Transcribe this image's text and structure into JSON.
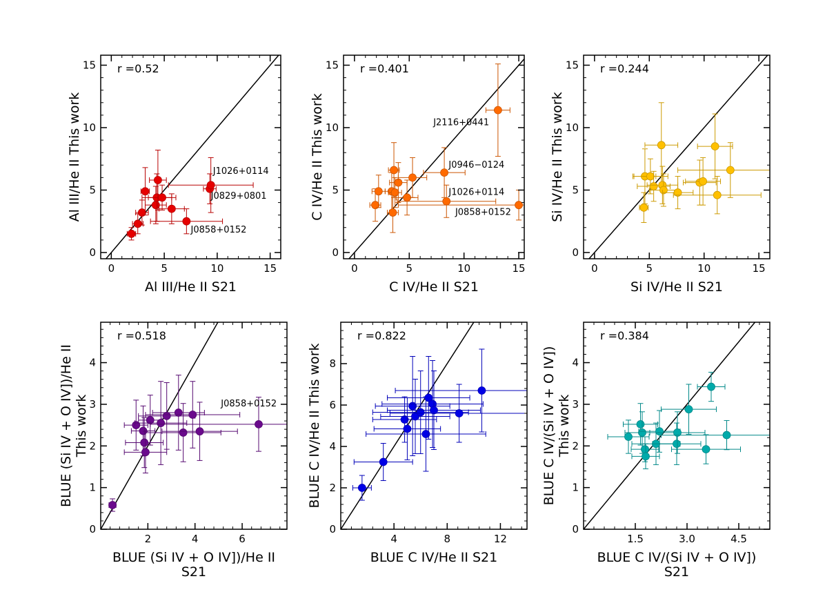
{
  "chart_data": [
    {
      "type": "scatter",
      "color": "#e60000",
      "xlabel": "Al III/He II S21",
      "ylabel": "Al III/He II This work",
      "xlim": [
        -1,
        16
      ],
      "ylim": [
        -0.5,
        15.8
      ],
      "xticks": [
        0,
        5,
        10,
        15
      ],
      "yticks": [
        0,
        5,
        10,
        15
      ],
      "r_label": "r =0.52",
      "points": [
        {
          "x": 1.9,
          "y": 1.5,
          "xerr": 0.4,
          "yerr": 0.5
        },
        {
          "x": 2.5,
          "y": 2.3,
          "xerr": 0.5,
          "yerr": 0.8
        },
        {
          "x": 2.9,
          "y": 3.2,
          "xerr": 0.6,
          "yerr": 1.0
        },
        {
          "x": 3.2,
          "y": 4.9,
          "xerr": 0.4,
          "yerr": 1.9
        },
        {
          "x": 4.2,
          "y": 3.8,
          "xerr": 1.0,
          "yerr": 1.5
        },
        {
          "x": 4.3,
          "y": 4.4,
          "xerr": 1.4,
          "yerr": 1.9
        },
        {
          "x": 4.4,
          "y": 5.8,
          "xerr": 0.8,
          "yerr": 2.4
        },
        {
          "x": 4.8,
          "y": 4.4,
          "xerr": 1.3,
          "yerr": 1.0
        },
        {
          "x": 5.7,
          "y": 3.5,
          "xerr": 1.2,
          "yerr": 1.2
        },
        {
          "x": 7.1,
          "y": 2.5,
          "xerr": 3.4,
          "yerr": 1.0
        },
        {
          "x": 9.3,
          "y": 5.1,
          "xerr": 0.6,
          "yerr": 1.2
        },
        {
          "x": 9.4,
          "y": 5.4,
          "xerr": 4.0,
          "yerr": 2.2
        }
      ],
      "annotations": [
        {
          "text": "J1026+0114",
          "x": 9.6,
          "y": 6.3
        },
        {
          "text": "J0829+0801",
          "x": 9.4,
          "y": 4.3
        },
        {
          "text": "J0858+0152",
          "x": 7.5,
          "y": 1.6
        }
      ]
    },
    {
      "type": "scatter",
      "color": "#ff6a00",
      "xlabel": "C IV/He II S21",
      "ylabel": "C IV/He II This work",
      "xlim": [
        -1,
        15.5
      ],
      "ylim": [
        -0.5,
        15.8
      ],
      "xticks": [
        0,
        5,
        10,
        15
      ],
      "yticks": [
        0,
        5,
        10,
        15
      ],
      "r_label": "r =0.401",
      "points": [
        {
          "x": 1.9,
          "y": 3.8,
          "xerr": 0.5,
          "yerr": 1.3
        },
        {
          "x": 2.2,
          "y": 4.9,
          "xerr": 0.6,
          "yerr": 1.3
        },
        {
          "x": 3.4,
          "y": 4.9,
          "xerr": 0.6,
          "yerr": 1.5
        },
        {
          "x": 3.5,
          "y": 3.2,
          "xerr": 0.5,
          "yerr": 1.6
        },
        {
          "x": 3.6,
          "y": 6.6,
          "xerr": 0.5,
          "yerr": 2.2
        },
        {
          "x": 3.7,
          "y": 4.8,
          "xerr": 0.6,
          "yerr": 1.2
        },
        {
          "x": 4.0,
          "y": 5.6,
          "xerr": 0.8,
          "yerr": 1.6
        },
        {
          "x": 4.8,
          "y": 4.4,
          "xerr": 1.0,
          "yerr": 1.4
        },
        {
          "x": 5.3,
          "y": 6.0,
          "xerr": 1.3,
          "yerr": 1.6
        },
        {
          "x": 8.2,
          "y": 6.4,
          "xerr": 1.9,
          "yerr": 2.0
        },
        {
          "x": 8.4,
          "y": 4.1,
          "xerr": 4.5,
          "yerr": 1.3
        },
        {
          "x": 13.1,
          "y": 11.4,
          "xerr": 1.1,
          "yerr": 3.7
        },
        {
          "x": 15.0,
          "y": 3.8,
          "xerr": 11.0,
          "yerr": 1.2
        }
      ],
      "annotations": [
        {
          "text": "J2116+0441",
          "x": 7.2,
          "y": 10.2
        },
        {
          "text": "J0946−0124",
          "x": 8.6,
          "y": 6.8
        },
        {
          "text": "J1026+0114",
          "x": 8.6,
          "y": 4.6
        },
        {
          "text": "J0858+0152",
          "x": 9.2,
          "y": 3.0
        }
      ]
    },
    {
      "type": "scatter",
      "color": "#ffc000",
      "xlabel": "Si IV/He II S21",
      "ylabel": "Si IV/He II This work",
      "xlim": [
        -1,
        16
      ],
      "ylim": [
        -0.5,
        15.8
      ],
      "xticks": [
        0,
        5,
        10,
        15
      ],
      "yticks": [
        0,
        5,
        10,
        15
      ],
      "r_label": "r =0.244",
      "points": [
        {
          "x": 4.5,
          "y": 3.6,
          "xerr": 0.4,
          "yerr": 1.2
        },
        {
          "x": 4.6,
          "y": 6.1,
          "xerr": 1.0,
          "yerr": 2.2
        },
        {
          "x": 5.1,
          "y": 6.1,
          "xerr": 1.6,
          "yerr": 1.4
        },
        {
          "x": 5.4,
          "y": 5.3,
          "xerr": 1.5,
          "yerr": 1.2
        },
        {
          "x": 6.1,
          "y": 8.6,
          "xerr": 1.5,
          "yerr": 3.4
        },
        {
          "x": 6.2,
          "y": 5.4,
          "xerr": 1.4,
          "yerr": 1.5
        },
        {
          "x": 6.3,
          "y": 5.0,
          "xerr": 1.3,
          "yerr": 1.3
        },
        {
          "x": 7.6,
          "y": 4.8,
          "xerr": 1.4,
          "yerr": 1.3
        },
        {
          "x": 9.6,
          "y": 5.6,
          "xerr": 1.5,
          "yerr": 1.8
        },
        {
          "x": 9.9,
          "y": 5.7,
          "xerr": 1.6,
          "yerr": 1.9
        },
        {
          "x": 11.0,
          "y": 8.5,
          "xerr": 1.6,
          "yerr": 2.6
        },
        {
          "x": 11.2,
          "y": 4.6,
          "xerr": 4.0,
          "yerr": 1.5
        },
        {
          "x": 12.4,
          "y": 6.6,
          "xerr": 4.8,
          "yerr": 2.2
        }
      ],
      "annotations": []
    },
    {
      "type": "scatter",
      "color": "#6a0a8c",
      "xlabel": "BLUE  (Si IV + O IV])/He II",
      "xlabel2": "S21",
      "ylabel": "BLUE (Si IV + O IV])/He II",
      "ylabel2": "This work",
      "xlim": [
        0,
        7.9
      ],
      "ylim": [
        0,
        4.97
      ],
      "xticks": [
        2,
        4,
        6
      ],
      "yticks": [
        0,
        1,
        2,
        3,
        4
      ],
      "r_label": "r =0.518",
      "points": [
        {
          "x": 0.5,
          "y": 0.58,
          "xerr": 0.15,
          "yerr": 0.15
        },
        {
          "x": 1.5,
          "y": 2.5,
          "xerr": 0.5,
          "yerr": 0.6
        },
        {
          "x": 1.8,
          "y": 2.36,
          "xerr": 0.5,
          "yerr": 0.6
        },
        {
          "x": 1.85,
          "y": 2.08,
          "xerr": 0.8,
          "yerr": 0.6
        },
        {
          "x": 1.9,
          "y": 1.85,
          "xerr": 0.9,
          "yerr": 0.5
        },
        {
          "x": 2.1,
          "y": 2.62,
          "xerr": 0.5,
          "yerr": 0.6
        },
        {
          "x": 2.55,
          "y": 2.55,
          "xerr": 1.1,
          "yerr": 1.0
        },
        {
          "x": 2.8,
          "y": 2.72,
          "xerr": 1.2,
          "yerr": 0.8
        },
        {
          "x": 3.3,
          "y": 2.8,
          "xerr": 1.1,
          "yerr": 0.9
        },
        {
          "x": 3.5,
          "y": 2.32,
          "xerr": 1.6,
          "yerr": 0.7
        },
        {
          "x": 3.9,
          "y": 2.75,
          "xerr": 2.0,
          "yerr": 0.8
        },
        {
          "x": 4.2,
          "y": 2.35,
          "xerr": 1.6,
          "yerr": 0.7
        },
        {
          "x": 6.7,
          "y": 2.52,
          "xerr": 4.6,
          "yerr": 0.65
        }
      ],
      "annotations": [
        {
          "text": "J0858+0152",
          "x": 5.1,
          "y": 2.95
        }
      ]
    },
    {
      "type": "scatter",
      "color": "#0000e6",
      "xlabel": "BLUE C IV/He II S21",
      "ylabel": "BLUE C IV/He II  This work",
      "xlim": [
        0,
        14
      ],
      "ylim": [
        0,
        10
      ],
      "xticks": [
        4,
        8,
        12
      ],
      "yticks": [
        0,
        2,
        4,
        6,
        8
      ],
      "r_label": "r =0.822",
      "points": [
        {
          "x": 1.6,
          "y": 2.0,
          "xerr": 0.7,
          "yerr": 0.6
        },
        {
          "x": 3.2,
          "y": 3.25,
          "xerr": 2.2,
          "yerr": 0.9
        },
        {
          "x": 4.8,
          "y": 5.3,
          "xerr": 2.4,
          "yerr": 1.1
        },
        {
          "x": 5.0,
          "y": 4.85,
          "xerr": 2.5,
          "yerr": 1.5
        },
        {
          "x": 5.4,
          "y": 5.95,
          "xerr": 2.8,
          "yerr": 2.4
        },
        {
          "x": 5.6,
          "y": 5.45,
          "xerr": 2.6,
          "yerr": 1.8
        },
        {
          "x": 6.0,
          "y": 5.65,
          "xerr": 3.6,
          "yerr": 2.0
        },
        {
          "x": 6.4,
          "y": 4.6,
          "xerr": 4.5,
          "yerr": 1.8
        },
        {
          "x": 6.6,
          "y": 6.35,
          "xerr": 3.1,
          "yerr": 2.0
        },
        {
          "x": 6.9,
          "y": 6.05,
          "xerr": 3.8,
          "yerr": 2.1
        },
        {
          "x": 7.0,
          "y": 5.75,
          "xerr": 3.5,
          "yerr": 1.9
        },
        {
          "x": 8.9,
          "y": 5.6,
          "xerr": 5.2,
          "yerr": 1.4
        },
        {
          "x": 10.6,
          "y": 6.7,
          "xerr": 6.5,
          "yerr": 2.0
        }
      ],
      "annotations": []
    },
    {
      "type": "scatter",
      "color": "#00aaaa",
      "xlabel": "BLUE C IV/(Si IV + O IV])",
      "xlabel2": "S21",
      "ylabel": "BLUE C IV/(Si IV + O IV])",
      "ylabel2": "This work",
      "xlim": [
        0,
        5.4
      ],
      "ylim": [
        0,
        4.97
      ],
      "xticks": [
        1.5,
        3.0,
        4.5
      ],
      "xtick_labels": [
        "1.5",
        "3.0",
        "4.5"
      ],
      "yticks": [
        0,
        1,
        2,
        3,
        4
      ],
      "r_label": "r =0.384",
      "points": [
        {
          "x": 1.3,
          "y": 2.22,
          "xerr": 0.6,
          "yerr": 0.4
        },
        {
          "x": 1.65,
          "y": 2.52,
          "xerr": 0.5,
          "yerr": 0.5
        },
        {
          "x": 1.7,
          "y": 2.32,
          "xerr": 0.5,
          "yerr": 0.5
        },
        {
          "x": 1.78,
          "y": 1.92,
          "xerr": 0.4,
          "yerr": 0.3
        },
        {
          "x": 1.8,
          "y": 1.75,
          "xerr": 0.4,
          "yerr": 0.3
        },
        {
          "x": 2.1,
          "y": 2.05,
          "xerr": 0.7,
          "yerr": 0.5
        },
        {
          "x": 2.2,
          "y": 2.35,
          "xerr": 0.6,
          "yerr": 0.5
        },
        {
          "x": 2.7,
          "y": 2.05,
          "xerr": 0.7,
          "yerr": 0.5
        },
        {
          "x": 2.72,
          "y": 2.32,
          "xerr": 0.8,
          "yerr": 0.5
        },
        {
          "x": 3.05,
          "y": 2.88,
          "xerr": 0.8,
          "yerr": 0.6
        },
        {
          "x": 3.55,
          "y": 1.92,
          "xerr": 1.0,
          "yerr": 0.35
        },
        {
          "x": 3.7,
          "y": 3.42,
          "xerr": 0.4,
          "yerr": 0.35
        },
        {
          "x": 4.15,
          "y": 2.26,
          "xerr": 1.9,
          "yerr": 0.35
        }
      ],
      "annotations": []
    }
  ]
}
